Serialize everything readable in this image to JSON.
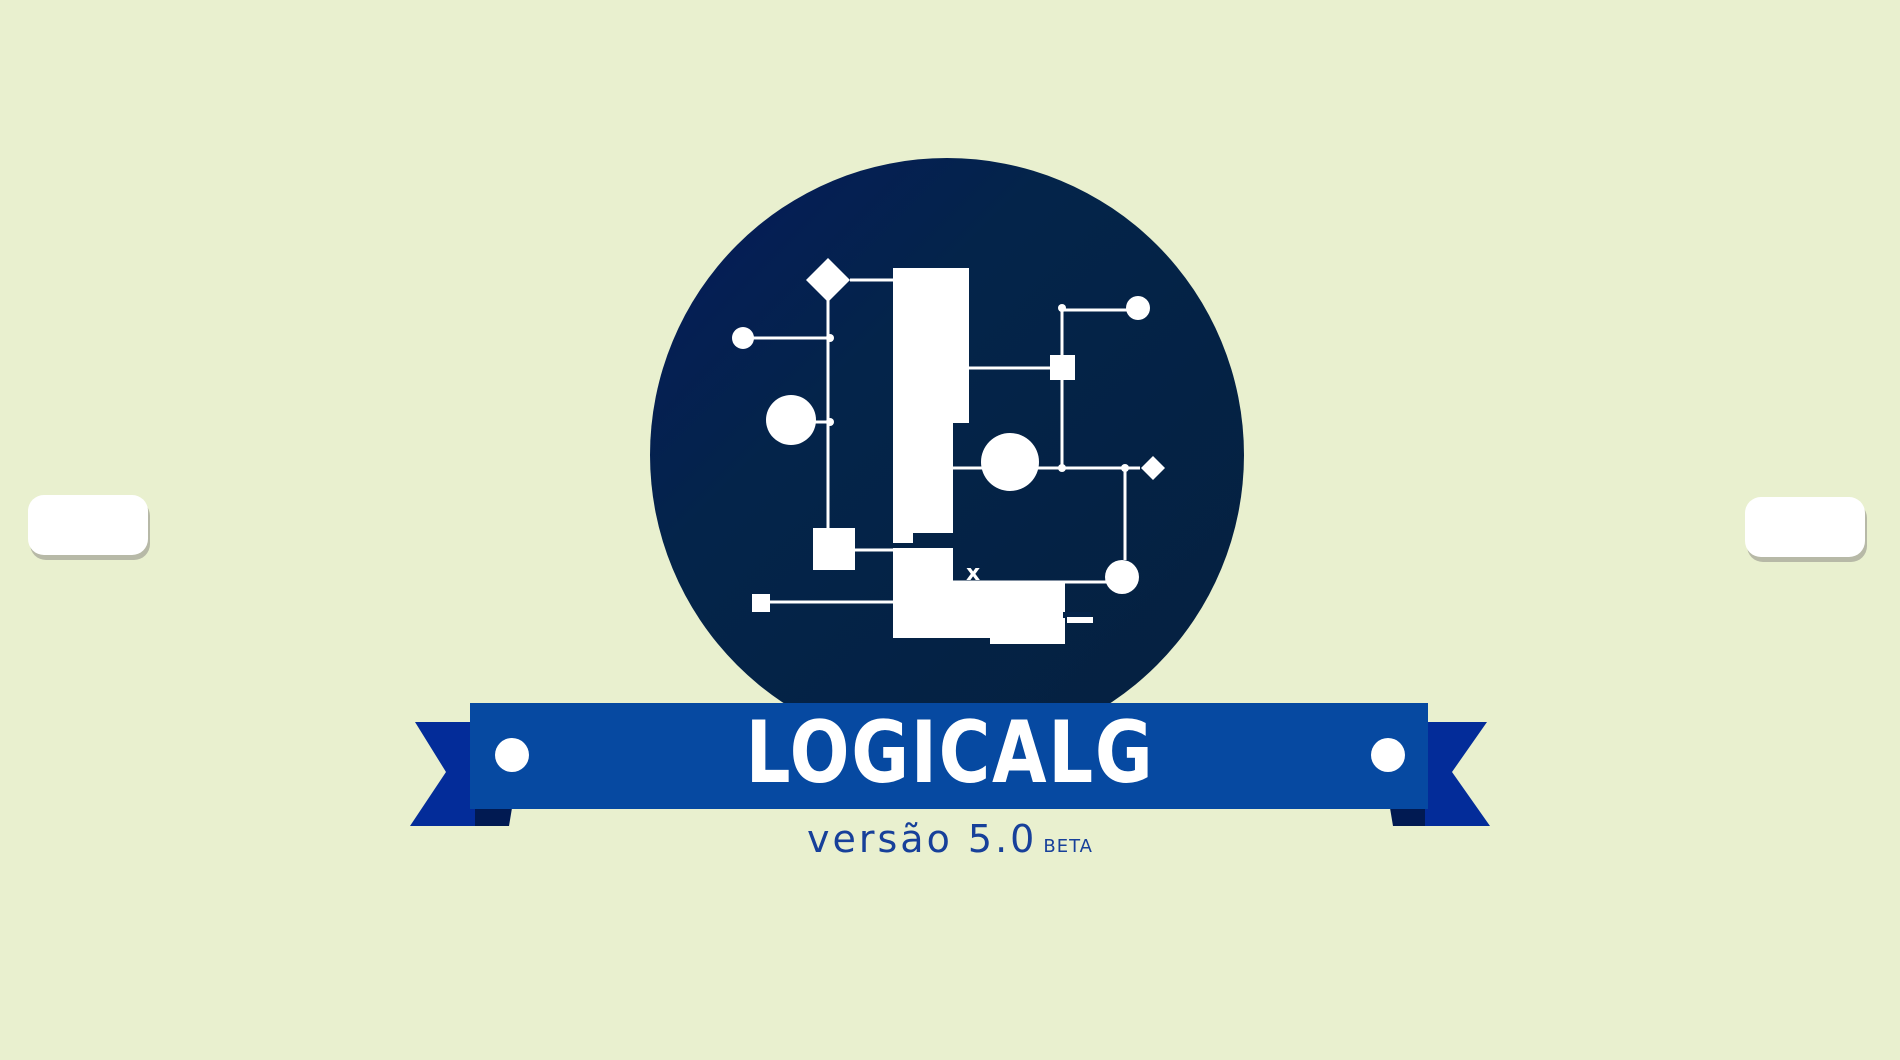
{
  "app": {
    "title": "LOGICALG",
    "version_label": "versão 5.0",
    "beta_label": "BETA"
  },
  "logo": {
    "name": "logicalg-circuit-logo",
    "glyph": "x"
  },
  "colors": {
    "background": "#e9f0cf",
    "circle_dark": "#04244a",
    "circle_accent": "#06185e",
    "ribbon_main": "#0649a1",
    "ribbon_tail": "#032c99",
    "text_version": "#17409a",
    "white": "#ffffff"
  }
}
